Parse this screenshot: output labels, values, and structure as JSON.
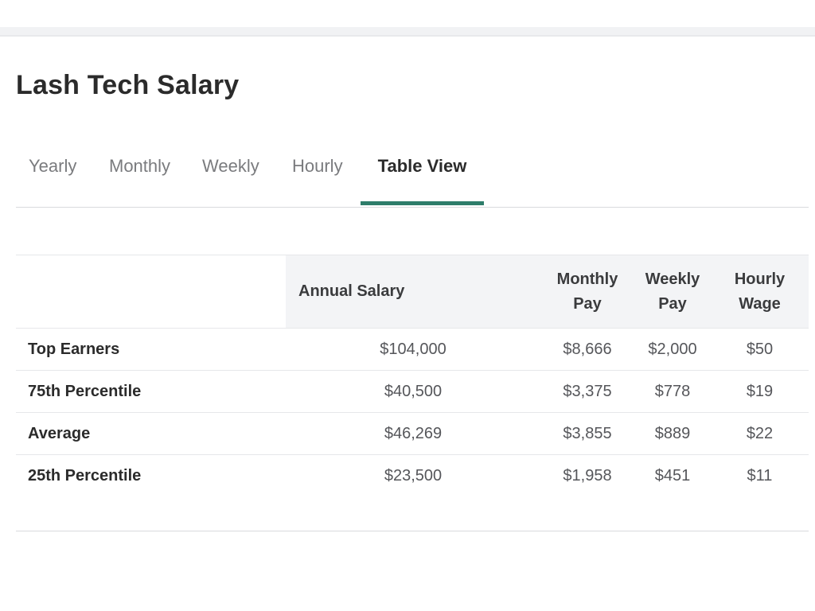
{
  "page": {
    "title": "Lash Tech Salary"
  },
  "tabs": [
    {
      "label": "Yearly"
    },
    {
      "label": "Monthly"
    },
    {
      "label": "Weekly"
    },
    {
      "label": "Hourly"
    },
    {
      "label": "Table View",
      "active": true
    }
  ],
  "colors": {
    "accent": "#2e7d6a",
    "header_bg": "#f3f4f6",
    "text_dark": "#2b2b2b",
    "text_muted": "#7a7b7e"
  },
  "table": {
    "headers": {
      "annual": "Annual Salary",
      "monthly_line1": "Monthly",
      "monthly_line2": "Pay",
      "weekly_line1": "Weekly",
      "weekly_line2": "Pay",
      "hourly_line1": "Hourly",
      "hourly_line2": "Wage"
    },
    "rows": [
      {
        "label": "Top Earners",
        "annual": "$104,000",
        "monthly": "$8,666",
        "weekly": "$2,000",
        "hourly": "$50"
      },
      {
        "label": "75th Percentile",
        "annual": "$40,500",
        "monthly": "$3,375",
        "weekly": "$778",
        "hourly": "$19"
      },
      {
        "label": "Average",
        "annual": "$46,269",
        "monthly": "$3,855",
        "weekly": "$889",
        "hourly": "$22"
      },
      {
        "label": "25th Percentile",
        "annual": "$23,500",
        "monthly": "$1,958",
        "weekly": "$451",
        "hourly": "$11"
      }
    ]
  }
}
